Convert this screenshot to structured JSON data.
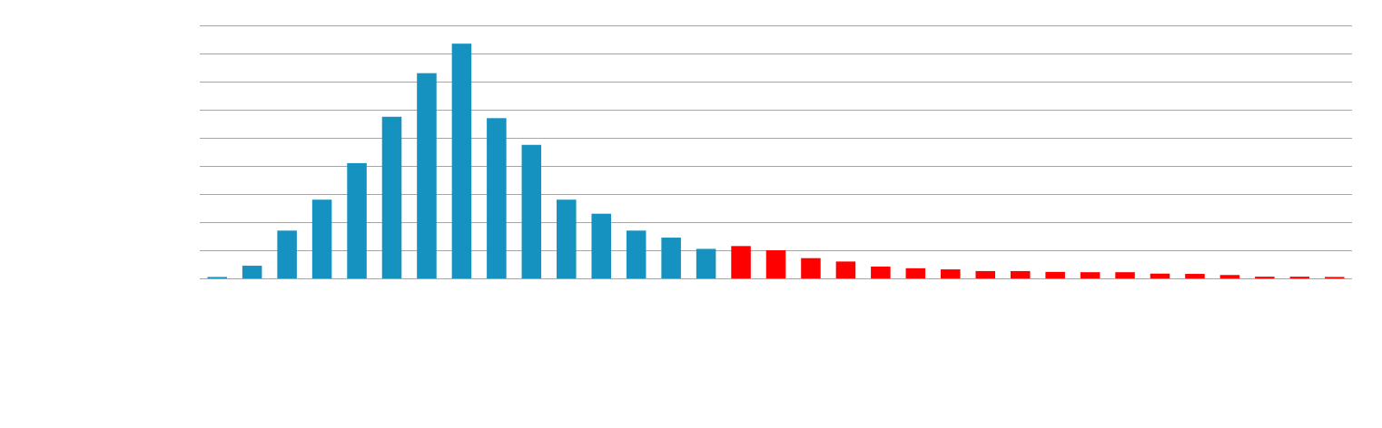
{
  "chart_data": {
    "type": "bar",
    "title": "",
    "xlabel": "",
    "ylabel": "",
    "ylim": [
      0,
      9
    ],
    "grid": true,
    "legend": "none",
    "colors": {
      "primary": "#1592bf",
      "highlight": "#ff0000",
      "grid": "#a6a6a6"
    },
    "values": [
      0.05,
      0.45,
      1.7,
      2.8,
      4.1,
      5.75,
      7.3,
      8.35,
      5.7,
      4.75,
      2.8,
      2.3,
      1.7,
      1.45,
      1.05,
      1.15,
      1.0,
      0.72,
      0.6,
      0.42,
      0.36,
      0.32,
      0.26,
      0.26,
      0.23,
      0.22,
      0.22,
      0.17,
      0.16,
      0.12,
      0.06,
      0.06,
      0.05
    ],
    "bar_colors": [
      "primary",
      "primary",
      "primary",
      "primary",
      "primary",
      "primary",
      "primary",
      "primary",
      "primary",
      "primary",
      "primary",
      "primary",
      "primary",
      "primary",
      "primary",
      "highlight",
      "highlight",
      "highlight",
      "highlight",
      "highlight",
      "highlight",
      "highlight",
      "highlight",
      "highlight",
      "highlight",
      "highlight",
      "highlight",
      "highlight",
      "highlight",
      "highlight",
      "highlight",
      "highlight",
      "highlight"
    ]
  }
}
